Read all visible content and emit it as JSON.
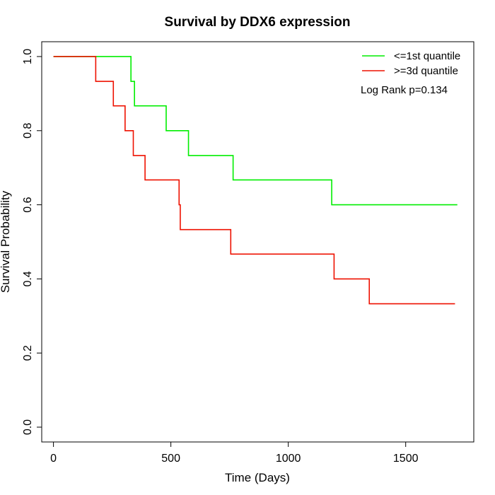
{
  "chart_data": {
    "type": "line",
    "title": "Survival by DDX6 expression",
    "xlabel": "Time (Days)",
    "ylabel": "Survival Probability",
    "xlim": [
      -50,
      1790
    ],
    "ylim": [
      -0.04,
      1.04
    ],
    "xticks": [
      0,
      500,
      1000,
      1500
    ],
    "yticks": [
      0.0,
      0.2,
      0.4,
      0.6,
      0.8,
      1.0
    ],
    "xtick_labels": [
      "0",
      "500",
      "1000",
      "1500"
    ],
    "ytick_labels": [
      "0.0",
      "0.2",
      "0.4",
      "0.6",
      "0.8",
      "1.0"
    ],
    "grid": false,
    "legend_position": "top-right",
    "annotation": "Log Rank p=0.134",
    "series": [
      {
        "name": "<=1st quantile",
        "color": "#00ee00",
        "step": true,
        "x": [
          0,
          330,
          345,
          480,
          575,
          765,
          1185,
          1720
        ],
        "y": [
          1.0,
          0.933,
          0.867,
          0.8,
          0.733,
          0.667,
          0.6,
          0.6
        ]
      },
      {
        "name": ">=3d quantile",
        "color": "#ee1100",
        "step": true,
        "x": [
          0,
          180,
          255,
          305,
          340,
          390,
          535,
          540,
          755,
          1195,
          1345,
          1710
        ],
        "y": [
          1.0,
          0.933,
          0.867,
          0.8,
          0.733,
          0.667,
          0.6,
          0.533,
          0.467,
          0.4,
          0.333,
          0.333
        ]
      }
    ]
  }
}
